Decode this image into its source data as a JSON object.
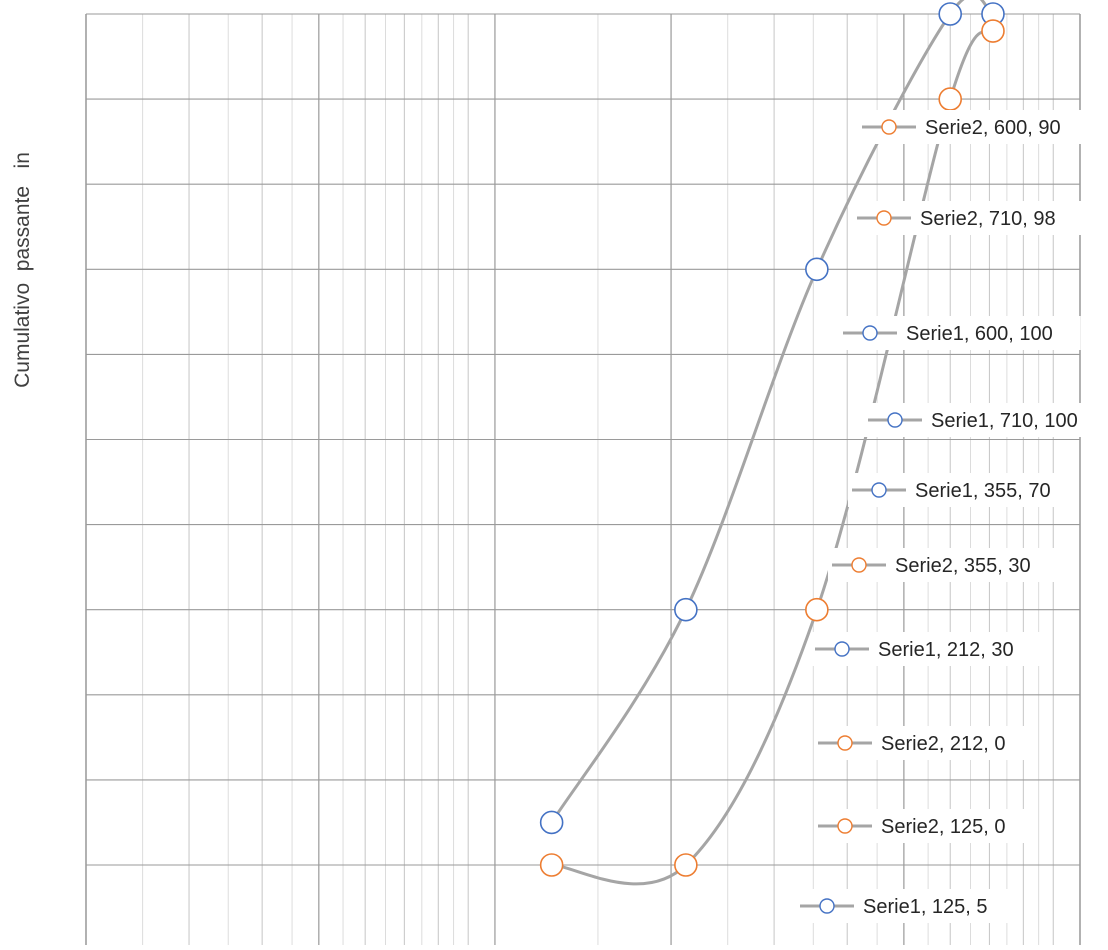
{
  "chart_data": {
    "type": "scatter",
    "title": "",
    "xlabel": "",
    "ylabel": "Cumulativo  passante   in",
    "x_scale": "log",
    "xlim": [
      20,
      1000
    ],
    "ylim": [
      -10,
      100
    ],
    "grid": true,
    "legend": "none",
    "series": [
      {
        "name": "Serie1",
        "color": "#4472C4",
        "points": [
          [
            125,
            5
          ],
          [
            212,
            30
          ],
          [
            355,
            70
          ],
          [
            600,
            100
          ],
          [
            710,
            100
          ]
        ]
      },
      {
        "name": "Serie2",
        "color": "#ED7D31",
        "points": [
          [
            125,
            0
          ],
          [
            212,
            0
          ],
          [
            355,
            30
          ],
          [
            600,
            90
          ],
          [
            710,
            98
          ]
        ]
      }
    ],
    "line_color": "#A5A5A5",
    "annotations": [
      {
        "text": "Serie2, 600, 90",
        "series": "Serie2"
      },
      {
        "text": "Serie2, 710, 98",
        "series": "Serie2"
      },
      {
        "text": "Serie1, 600, 100",
        "series": "Serie1"
      },
      {
        "text": "Serie1, 710, 100",
        "series": "Serie1"
      },
      {
        "text": "Serie1, 355, 70",
        "series": "Serie1"
      },
      {
        "text": "Serie2, 355, 30",
        "series": "Serie2"
      },
      {
        "text": "Serie1, 212, 30",
        "series": "Serie1"
      },
      {
        "text": "Serie2, 212, 0",
        "series": "Serie2"
      },
      {
        "text": "Serie2, 125, 0",
        "series": "Serie2"
      },
      {
        "text": "Serie1, 125, 5",
        "series": "Serie1"
      }
    ]
  }
}
